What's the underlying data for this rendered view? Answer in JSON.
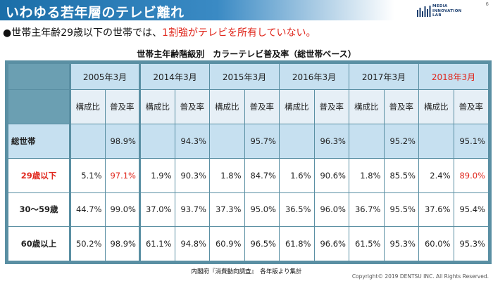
{
  "header": {
    "title": "いわゆる若年層のテレビ離れ",
    "page_number": "6",
    "logo_lines": [
      "MEDIA",
      "INNOVATION",
      "LAB"
    ]
  },
  "bullet": {
    "symbol": "●",
    "text_before": "世帯主年齢29歳以下の世帯では、",
    "text_highlight": "1割強がテレビを所有していない。"
  },
  "table_title": "世帯主年齢階級別　カラーテレビ普及率（総世帯ベース）",
  "table": {
    "years": [
      "2005年3月",
      "2014年3月",
      "2015年3月",
      "2016年3月",
      "2017年3月",
      "2018年3月"
    ],
    "sub_headers": [
      "構成比",
      "普及率"
    ],
    "rows": [
      {
        "label": "総世帯",
        "values": [
          "",
          "98.9%",
          "",
          "94.3%",
          "",
          "95.7%",
          "",
          "96.3%",
          "",
          "95.2%",
          "",
          "95.1%"
        ]
      },
      {
        "label": "29歳以下",
        "values": [
          "5.1%",
          "97.1%",
          "1.9%",
          "90.3%",
          "1.8%",
          "84.7%",
          "1.6%",
          "90.6%",
          "1.8%",
          "85.5%",
          "2.4%",
          "89.0%"
        ]
      },
      {
        "label": "30～59歳",
        "values": [
          "44.7%",
          "99.0%",
          "37.0%",
          "93.7%",
          "37.3%",
          "95.0%",
          "36.5%",
          "96.0%",
          "36.7%",
          "95.5%",
          "37.6%",
          "95.4%"
        ]
      },
      {
        "label": "60歳以上",
        "values": [
          "50.2%",
          "98.9%",
          "61.1%",
          "94.8%",
          "60.9%",
          "96.5%",
          "61.8%",
          "96.6%",
          "61.5%",
          "95.3%",
          "60.0%",
          "95.3%"
        ]
      }
    ]
  },
  "colors": {
    "accent_red": "#e0281e",
    "header_blue": "#1b6ea8",
    "table_border": "#5a8fa3",
    "header_cell": "#c6e0f0"
  },
  "source": "内閣府『消費動向調査』　各年版より集計",
  "copyright": "Copyright© 2019 DENTSU INC. All Rights Reserved."
}
